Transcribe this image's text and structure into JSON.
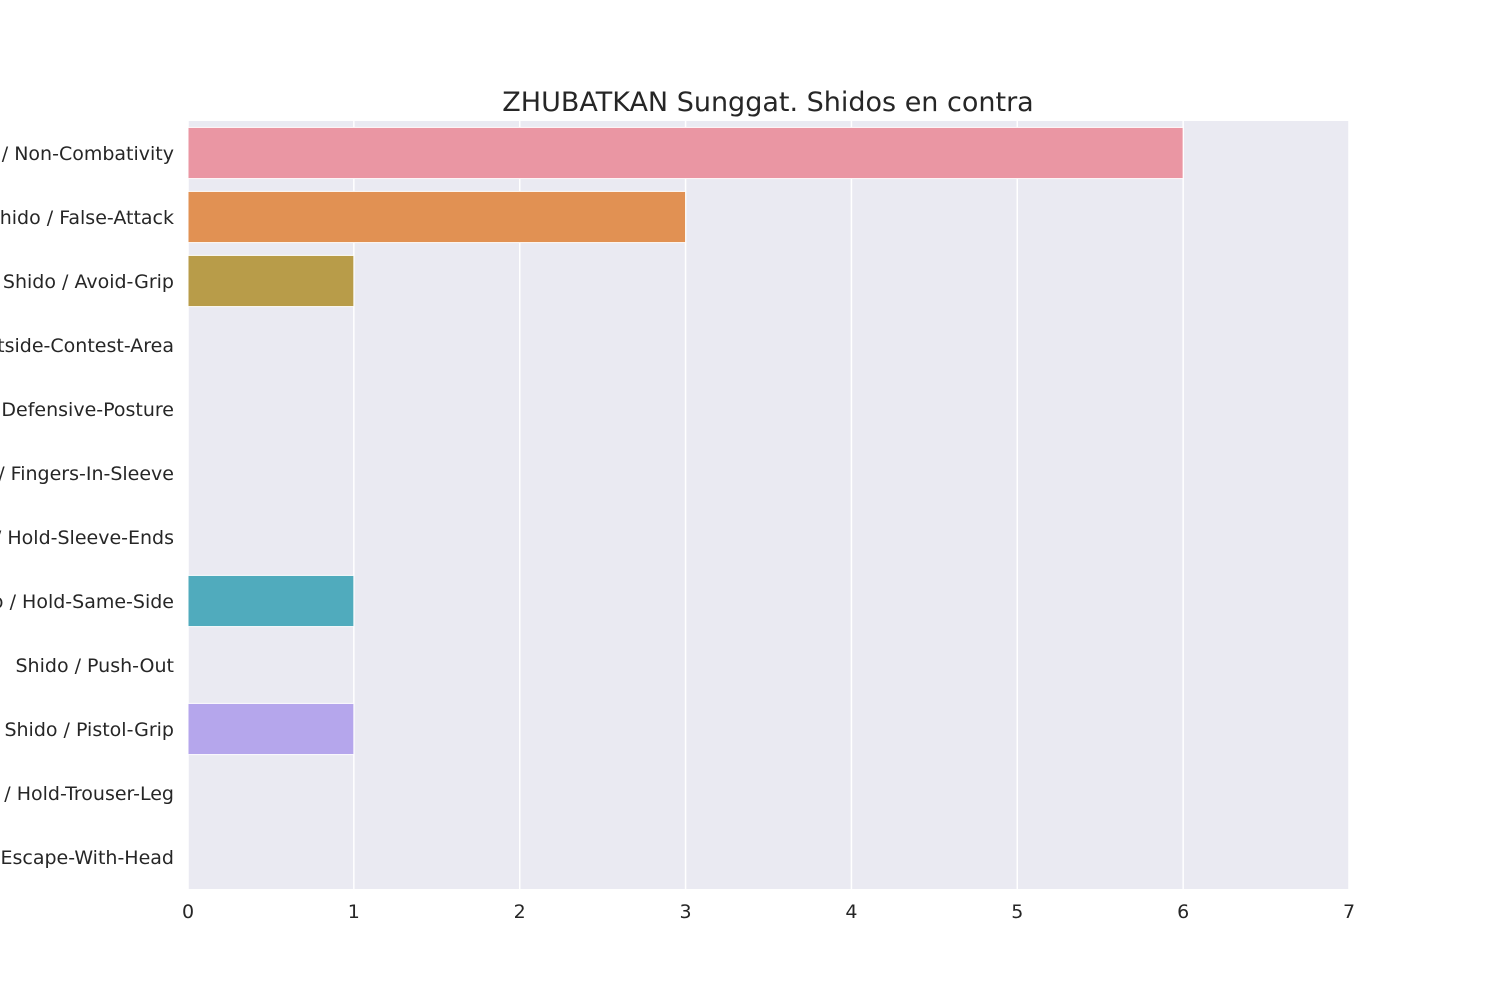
{
  "chart_data": {
    "type": "bar",
    "orientation": "horizontal",
    "title": "ZHUBATKAN Sunggat. Shidos en contra",
    "xlabel": "",
    "ylabel": "",
    "xlim": [
      0,
      7
    ],
    "x_ticks": [
      "0",
      "1",
      "2",
      "3",
      "4",
      "5",
      "6",
      "7"
    ],
    "grid": true,
    "categories": [
      "Shido / Non-Combativity",
      "Shido / False-Attack",
      "Shido / Avoid-Grip",
      "Shido / Outside-Contest-Area",
      "Shido / Defensive-Posture",
      "Shido / Fingers-In-Sleeve",
      "Shido / Hold-Sleeve-Ends",
      "Shido / Hold-Same-Side",
      "Shido / Push-Out",
      "Shido / Pistol-Grip",
      "Shido / Hold-Trouser-Leg",
      "Shido / Escape-With-Head"
    ],
    "values": [
      6,
      3,
      1,
      0,
      0,
      0,
      0,
      1,
      0,
      1,
      0,
      0
    ],
    "colors": [
      "#ea96a3",
      "#e19153",
      "#b89c49",
      "#96a94d",
      "#5fb04d",
      "#52af8c",
      "#53ab9e",
      "#50abbd",
      "#56a7e2",
      "#b5a6ec",
      "#e291e1",
      "#ea8ac3"
    ],
    "plot_background": "#eaeaf2",
    "grid_color": "#ffffff"
  }
}
